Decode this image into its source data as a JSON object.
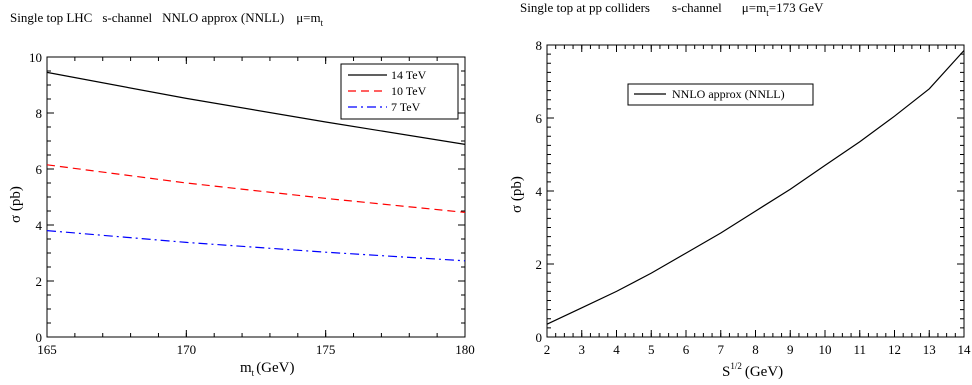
{
  "chart_data": [
    {
      "type": "line",
      "title_parts": {
        "left": "Single top LHC",
        "channel": "s-channel",
        "approx": "NNLO approx (NNLL)",
        "mu": "μ=m",
        "mu_sub": "t"
      },
      "xlabel": "m",
      "xlabel_sub": "t",
      "xlabel_unit": "(GeV)",
      "ylabel": "σ (pb)",
      "xlim": [
        165,
        180
      ],
      "ylim": [
        0,
        10
      ],
      "x_ticks": [
        "165",
        "170",
        "175",
        "180"
      ],
      "y_ticks": [
        "0",
        "2",
        "4",
        "6",
        "8",
        "10"
      ],
      "grid": false,
      "legend_position": "top-right",
      "series": [
        {
          "name": "14 TeV",
          "color": "#000000",
          "dash": "solid",
          "x": [
            165,
            170,
            175,
            180
          ],
          "values": [
            9.45,
            8.52,
            7.68,
            6.88
          ]
        },
        {
          "name": "10 TeV",
          "color": "#ff0000",
          "dash": "dashed",
          "x": [
            165,
            170,
            175,
            180
          ],
          "values": [
            6.15,
            5.5,
            4.95,
            4.45
          ]
        },
        {
          "name": "7 TeV",
          "color": "#0000ff",
          "dash": "dashdot",
          "x": [
            165,
            170,
            175,
            180
          ],
          "values": [
            3.8,
            3.38,
            3.03,
            2.72
          ]
        }
      ]
    },
    {
      "type": "line",
      "title_parts": {
        "left": "Single top at  pp colliders",
        "channel": "s-channel",
        "mu": "μ=m",
        "mu_sub": "t",
        "mu_value": "=173 GeV"
      },
      "xlabel": "S",
      "xlabel_sup": "1/2",
      "xlabel_unit": "(GeV)",
      "ylabel": "σ (pb)",
      "xlim": [
        2,
        14
      ],
      "ylim": [
        0,
        8
      ],
      "x_ticks": [
        "2",
        "3",
        "4",
        "5",
        "6",
        "7",
        "8",
        "9",
        "10",
        "11",
        "12",
        "13",
        "14"
      ],
      "y_ticks": [
        "0",
        "2",
        "4",
        "6",
        "8"
      ],
      "grid": false,
      "legend_position": "top-left",
      "series": [
        {
          "name": "NNLO approx (NNLL)",
          "color": "#000000",
          "dash": "solid",
          "x": [
            2,
            3,
            4,
            5,
            6,
            7,
            8,
            9,
            10,
            11,
            12,
            13,
            14
          ],
          "values": [
            0.35,
            0.8,
            1.25,
            1.75,
            2.3,
            2.85,
            3.45,
            4.05,
            4.7,
            5.35,
            6.05,
            6.8,
            7.85
          ]
        }
      ]
    }
  ],
  "colors": {
    "background": "#ffffff",
    "axis": "#000000"
  }
}
